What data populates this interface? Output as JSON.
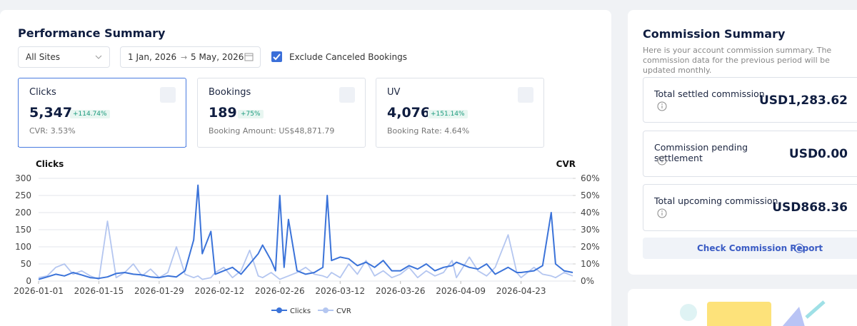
{
  "performance": {
    "title": "Performance Summary",
    "site_filter": "All Sites",
    "date_start": "1 Jan, 2026",
    "date_end": "5 May, 2026",
    "exclude_option": "Exclude Canceled Bookings",
    "cards": [
      {
        "label": "Clicks",
        "value": "5,347",
        "change": "+114.74%",
        "sub": "CVR: 3.53%"
      },
      {
        "label": "Bookings",
        "value": "189",
        "change": "+75%",
        "sub": "Booking Amount: US$48,871.79"
      },
      {
        "label": "UV",
        "value": "4,076",
        "change": "+151.14%",
        "sub": "Booking Rate: 4.64%"
      }
    ],
    "chart": {
      "type": "line",
      "y_label": "Clicks",
      "y2_label": "CVR",
      "x": [
        "2026-01-01",
        "2026-01-03",
        "2026-01-05",
        "2026-01-07",
        "2026-01-09",
        "2026-01-11",
        "2026-01-13",
        "2026-01-15",
        "2026-01-17",
        "2026-01-19",
        "2026-01-21",
        "2026-01-23",
        "2026-01-25",
        "2026-01-27",
        "2026-01-29",
        "2026-01-31",
        "2026-02-02",
        "2026-02-04",
        "2026-02-06",
        "2026-02-07",
        "2026-02-08",
        "2026-02-10",
        "2026-02-11",
        "2026-02-13",
        "2026-02-15",
        "2026-02-17",
        "2026-02-19",
        "2026-02-21",
        "2026-02-22",
        "2026-02-24",
        "2026-02-25",
        "2026-02-26",
        "2026-02-27",
        "2026-02-28",
        "2026-03-02",
        "2026-03-04",
        "2026-03-06",
        "2026-03-08",
        "2026-03-09",
        "2026-03-10",
        "2026-03-12",
        "2026-03-14",
        "2026-03-16",
        "2026-03-18",
        "2026-03-20",
        "2026-03-22",
        "2026-03-24",
        "2026-03-26",
        "2026-03-28",
        "2026-03-30",
        "2026-04-01",
        "2026-04-03",
        "2026-04-05",
        "2026-04-07",
        "2026-04-08",
        "2026-04-11",
        "2026-04-13",
        "2026-04-15",
        "2026-04-17",
        "2026-04-20",
        "2026-04-22",
        "2026-04-23",
        "2026-04-26",
        "2026-04-28",
        "2026-04-30",
        "2026-05-01",
        "2026-05-03",
        "2026-05-05"
      ],
      "series": [
        {
          "name": "Clicks",
          "color": "#3b73d9",
          "values": [
            5,
            12,
            20,
            15,
            25,
            18,
            10,
            8,
            12,
            22,
            25,
            20,
            18,
            12,
            10,
            15,
            12,
            30,
            120,
            280,
            80,
            145,
            20,
            30,
            40,
            20,
            50,
            80,
            105,
            60,
            30,
            250,
            40,
            180,
            30,
            20,
            25,
            40,
            250,
            60,
            70,
            65,
            45,
            55,
            40,
            60,
            30,
            30,
            45,
            35,
            50,
            30,
            40,
            45,
            55,
            40,
            35,
            50,
            20,
            40,
            25,
            25,
            30,
            45,
            200,
            50,
            30,
            25
          ]
        },
        {
          "name": "CVR",
          "color": "#b4c6f0",
          "axis": "y2",
          "values": [
            2,
            3,
            8,
            10,
            4,
            6,
            3,
            1,
            35,
            2,
            5,
            10,
            3,
            7,
            2,
            5,
            20,
            4,
            2,
            3,
            1,
            2,
            5,
            8,
            2,
            6,
            18,
            3,
            2,
            5,
            3,
            1,
            2,
            3,
            5,
            8,
            4,
            3,
            2,
            5,
            2,
            10,
            4,
            12,
            3,
            6,
            2,
            4,
            8,
            2,
            6,
            3,
            5,
            12,
            2,
            14,
            6,
            3,
            8,
            27,
            5,
            2,
            8,
            4,
            3,
            2,
            5,
            3
          ]
        }
      ],
      "xlim": [
        "2026-01-01",
        "2026-05-05"
      ],
      "xticks": [
        "2026-01-01",
        "2026-01-15",
        "2026-01-29",
        "2026-02-12",
        "2026-02-26",
        "2026-03-12",
        "2026-03-26",
        "2026-04-09",
        "2026-04-23"
      ],
      "ylim": [
        0,
        300
      ],
      "yticks": [
        0,
        50,
        100,
        150,
        200,
        250,
        300
      ],
      "y2lim": [
        0,
        60
      ],
      "y2ticks": [
        {
          "value": 0,
          "label": "0%"
        },
        {
          "value": 10,
          "label": "10%"
        },
        {
          "value": 20,
          "label": "20%"
        },
        {
          "value": 30,
          "label": "30%"
        },
        {
          "value": 40,
          "label": "40%"
        },
        {
          "value": 50,
          "label": "50%"
        },
        {
          "value": 60,
          "label": "60%"
        }
      ],
      "grid": true
    }
  },
  "commission": {
    "title": "Commission Summary",
    "description": "Here is your account commission summary. The commission data for the previous period will be updated monthly.",
    "items": [
      {
        "label": "Total settled commission",
        "value": "USD1,283.62"
      },
      {
        "label": "Commission pending settlement",
        "value": "USD0.00"
      },
      {
        "label": "Total upcoming commission",
        "value": "USD868.36"
      }
    ],
    "link": "Check Commission Report"
  }
}
